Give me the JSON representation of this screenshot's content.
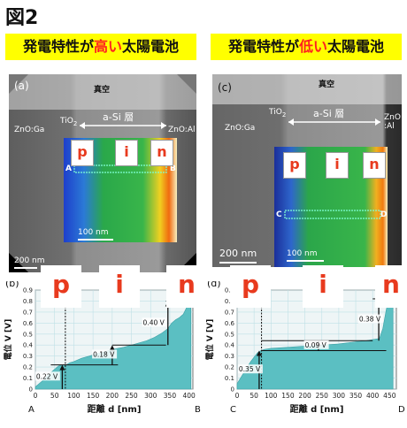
{
  "figure_title": "図2",
  "left": {
    "banner": {
      "prefix": "発電特性が",
      "highlight": "高い",
      "suffix": "太陽電池"
    },
    "tem": {
      "panel_label": "(a)",
      "vacuum": "真空",
      "tio2": "TiO",
      "tio2_sub": "2",
      "asi_layer": "a-Si 層",
      "left_material": "ZnO:Ga",
      "right_material": "ZnO:Al",
      "scale_main": "200 nm",
      "scale_inset": "100 nm",
      "line_start": "A",
      "line_end": "B",
      "regions": [
        "p",
        "i",
        "n"
      ]
    },
    "plot": {
      "panel_label": "(b)",
      "ylabel": "電位 V [V]",
      "xlabel": "距離 d [nm]",
      "x_ticks": [
        "0",
        "50",
        "100",
        "150",
        "200",
        "250",
        "300",
        "350",
        "400"
      ],
      "y_ticks": [
        "0",
        "0.1",
        "0.2",
        "0.3",
        "0.4",
        "0.5",
        "0.6",
        "0.7",
        "0.8",
        "0.9"
      ],
      "end_left": "A",
      "end_right": "B",
      "annotations": [
        "0.22 V",
        "0.18 V",
        "0.40 V"
      ]
    }
  },
  "right": {
    "banner": {
      "prefix": "発電特性が",
      "highlight": "低い",
      "suffix": "太陽電池"
    },
    "tem": {
      "panel_label": "(c)",
      "vacuum": "真空",
      "tio2": "TiO",
      "tio2_sub": "2",
      "asi_layer": "a-Si 層",
      "left_material": "ZnO:Ga",
      "right_material": "ZnO\n:Al",
      "scale_main": "200 nm",
      "scale_inset": "100 nm",
      "line_start": "C",
      "line_end": "D",
      "regions": [
        "p",
        "i",
        "n"
      ]
    },
    "plot": {
      "panel_label": "(d)",
      "ylabel": "電位 V [V]",
      "xlabel": "距離 d [nm]",
      "x_ticks": [
        "0",
        "50",
        "100",
        "150",
        "200",
        "250",
        "300",
        "350",
        "400",
        "450"
      ],
      "y_ticks": [
        "0",
        "0.1",
        "0.2",
        "0.3",
        "0.4",
        "0.5",
        "0.6",
        "0.7",
        "0.8",
        "0.9"
      ],
      "end_left": "C",
      "end_right": "D",
      "annotations": [
        "0.35 V",
        "0.09 V",
        "0.38 V"
      ]
    }
  },
  "big_badges": [
    "p",
    "i",
    "n",
    "p",
    "i",
    "n"
  ],
  "chart_data": [
    {
      "type": "area",
      "title": "",
      "xlabel": "距離 d [nm]",
      "ylabel": "電位 V [V]",
      "xlim": [
        0,
        410
      ],
      "ylim": [
        0,
        0.9
      ],
      "x": [
        0,
        20,
        40,
        60,
        70,
        80,
        90,
        100,
        120,
        150,
        180,
        200,
        230,
        260,
        290,
        310,
        330,
        345,
        355,
        365,
        375,
        385,
        395,
        400,
        405
      ],
      "y": [
        0.02,
        0.08,
        0.15,
        0.21,
        0.22,
        0.22,
        0.24,
        0.25,
        0.28,
        0.31,
        0.34,
        0.36,
        0.38,
        0.41,
        0.44,
        0.47,
        0.51,
        0.55,
        0.6,
        0.63,
        0.65,
        0.68,
        0.75,
        0.82,
        0.86
      ],
      "levels": [
        {
          "label": "0.22 V",
          "from": 0,
          "to": 0.22
        },
        {
          "label": "0.18 V",
          "from": 0.22,
          "to": 0.4
        },
        {
          "label": "0.40 V",
          "from": 0.4,
          "to": 0.8
        }
      ],
      "grid": true
    },
    {
      "type": "area",
      "title": "",
      "xlabel": "距離 d [nm]",
      "ylabel": "電位 V [V]",
      "xlim": [
        0,
        470
      ],
      "ylim": [
        0,
        0.9
      ],
      "x": [
        0,
        20,
        40,
        60,
        70,
        80,
        100,
        150,
        200,
        250,
        300,
        350,
        380,
        400,
        420,
        430,
        440,
        450,
        460
      ],
      "y": [
        0.05,
        0.15,
        0.25,
        0.33,
        0.35,
        0.36,
        0.37,
        0.38,
        0.39,
        0.4,
        0.41,
        0.43,
        0.44,
        0.45,
        0.46,
        0.55,
        0.72,
        0.85,
        0.88
      ],
      "levels": [
        {
          "label": "0.35 V",
          "from": 0,
          "to": 0.35
        },
        {
          "label": "0.09 V",
          "from": 0.35,
          "to": 0.44
        },
        {
          "label": "0.38 V",
          "from": 0.44,
          "to": 0.82
        }
      ],
      "grid": true
    }
  ]
}
